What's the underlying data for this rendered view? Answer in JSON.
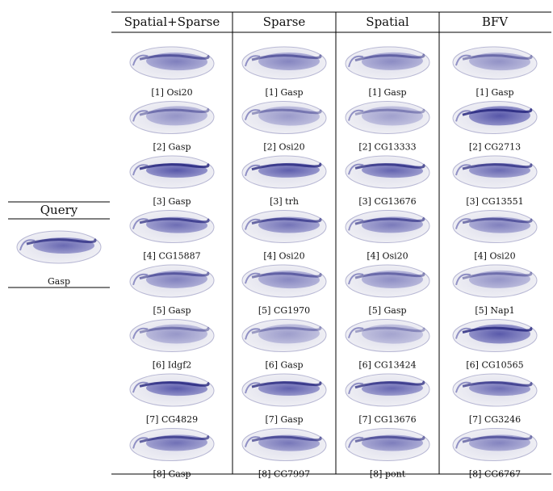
{
  "query": {
    "title": "Query",
    "label": "Gasp"
  },
  "columns": [
    {
      "header": "Spatial+Sparse",
      "results": [
        "[1] Osi20",
        "[2] Gasp",
        "[3] Gasp",
        "[4] CG15887",
        "[5] Gasp",
        "[6] Idgf2",
        "[7] CG4829",
        "[8] Gasp"
      ]
    },
    {
      "header": "Sparse",
      "results": [
        "[1] Gasp",
        "[2] Osi20",
        "[3] trh",
        "[4] Osi20",
        "[5] CG1970",
        "[6] Gasp",
        "[7] Gasp",
        "[8] CG7997"
      ]
    },
    {
      "header": "Spatial",
      "results": [
        "[1] Gasp",
        "[2] CG13333",
        "[3] CG13676",
        "[4] Osi20",
        "[5] Gasp",
        "[6] CG13424",
        "[7] CG13676",
        "[8] pont"
      ]
    },
    {
      "header": "BFV",
      "results": [
        "[1] Gasp",
        "[2] CG2713",
        "[3] CG13551",
        "[4] Osi20",
        "[5] Nap1",
        "[6] CG10565",
        "[7] CG3246",
        "[8] CG6767"
      ]
    }
  ]
}
